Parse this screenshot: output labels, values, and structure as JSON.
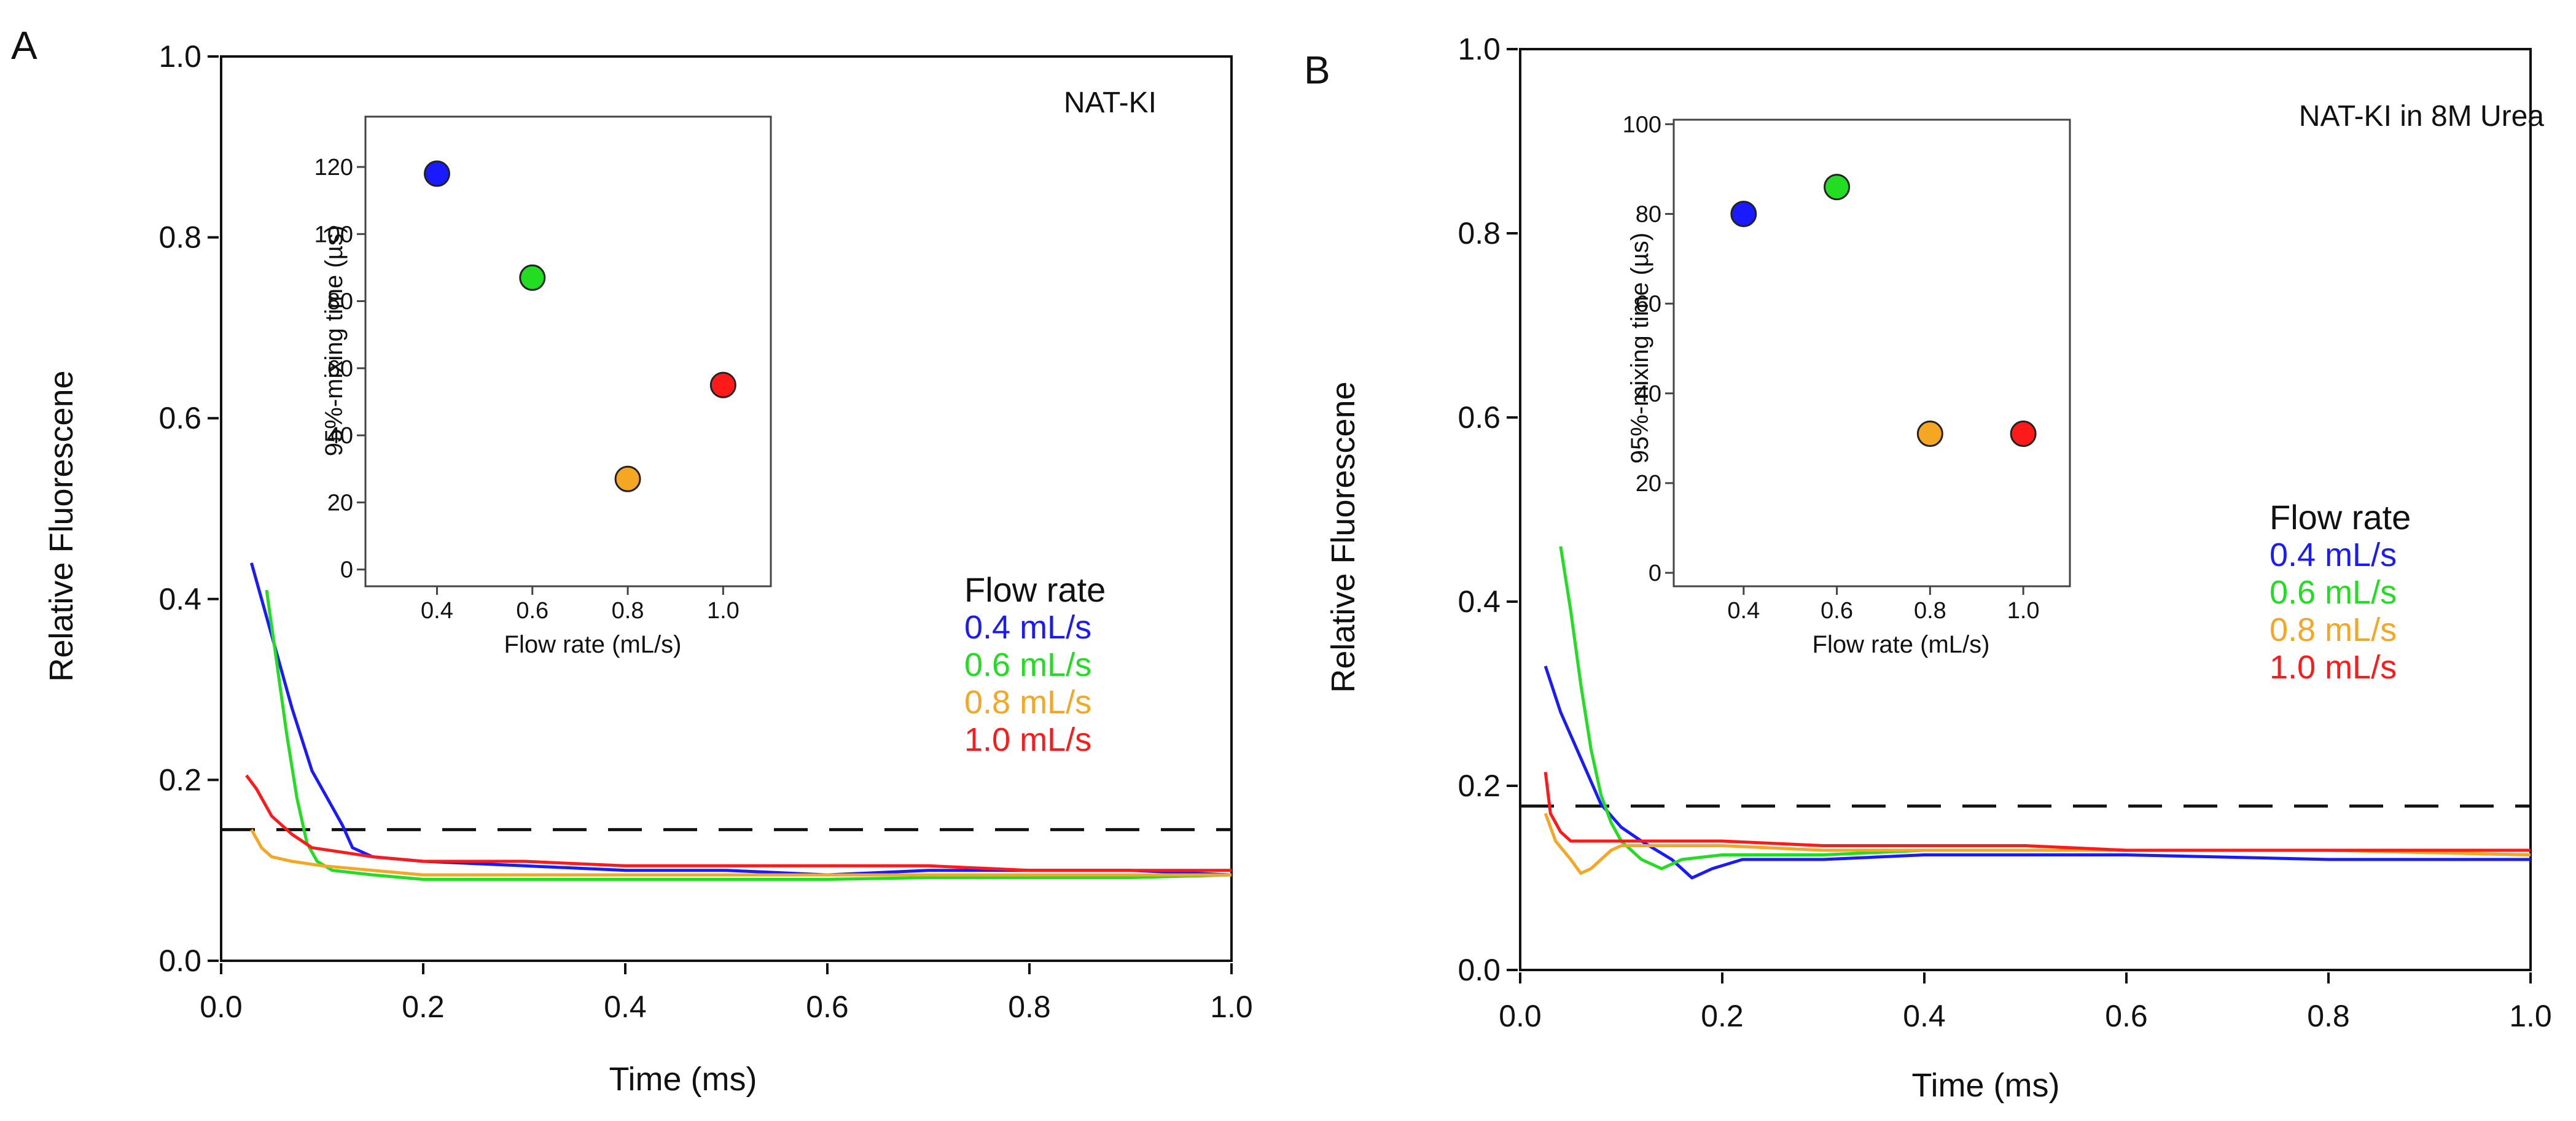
{
  "chart_data": [
    {
      "type": "line",
      "panel_letter": "A",
      "title": "NAT-KI",
      "xlabel": "Time (ms)",
      "ylabel": "Relative Fluorescene",
      "xlim": [
        0.0,
        1.0
      ],
      "ylim": [
        0.0,
        1.0
      ],
      "x_ticks": [
        "0.0",
        "0.2",
        "0.4",
        "0.6",
        "0.8",
        "1.0"
      ],
      "y_ticks": [
        "0.0",
        "0.2",
        "0.4",
        "0.6",
        "0.8",
        "1.0"
      ],
      "threshold_line": 0.145,
      "legend_title": "Flow rate",
      "series": [
        {
          "name": "0.4 mL/s",
          "color": "#1a1aff",
          "x": [
            0.03,
            0.05,
            0.07,
            0.09,
            0.11,
            0.12,
            0.13,
            0.15,
            0.2,
            0.3,
            0.4,
            0.5,
            0.6,
            0.7,
            0.8,
            0.9,
            1.0
          ],
          "y": [
            0.44,
            0.36,
            0.28,
            0.21,
            0.17,
            0.15,
            0.125,
            0.115,
            0.11,
            0.105,
            0.1,
            0.1,
            0.095,
            0.1,
            0.1,
            0.1,
            0.095
          ]
        },
        {
          "name": "0.6 mL/s",
          "color": "#22dd22",
          "x": [
            0.045,
            0.055,
            0.065,
            0.075,
            0.085,
            0.095,
            0.11,
            0.15,
            0.2,
            0.3,
            0.4,
            0.5,
            0.6,
            0.7,
            0.8,
            0.9,
            1.0
          ],
          "y": [
            0.41,
            0.33,
            0.25,
            0.18,
            0.13,
            0.11,
            0.1,
            0.095,
            0.09,
            0.09,
            0.09,
            0.09,
            0.09,
            0.092,
            0.092,
            0.092,
            0.095
          ]
        },
        {
          "name": "0.8 mL/s",
          "color": "#f5a623",
          "x": [
            0.03,
            0.04,
            0.05,
            0.07,
            0.1,
            0.15,
            0.2,
            0.3,
            0.4,
            0.5,
            0.6,
            0.7,
            0.8,
            0.9,
            1.0
          ],
          "y": [
            0.145,
            0.125,
            0.115,
            0.11,
            0.105,
            0.1,
            0.095,
            0.095,
            0.095,
            0.095,
            0.095,
            0.095,
            0.095,
            0.095,
            0.095
          ]
        },
        {
          "name": "1.0 mL/s",
          "color": "#ff1a1a",
          "x": [
            0.025,
            0.035,
            0.05,
            0.07,
            0.09,
            0.12,
            0.15,
            0.2,
            0.3,
            0.4,
            0.5,
            0.6,
            0.7,
            0.8,
            0.9,
            1.0
          ],
          "y": [
            0.205,
            0.19,
            0.16,
            0.14,
            0.125,
            0.12,
            0.115,
            0.11,
            0.11,
            0.105,
            0.105,
            0.105,
            0.105,
            0.1,
            0.1,
            0.1
          ]
        }
      ],
      "inset": {
        "type": "scatter",
        "xlabel": "Flow rate (mL/s)",
        "ylabel": "95%-mixing time  (µs)",
        "xlim": [
          0.25,
          1.1
        ],
        "ylim": [
          -5,
          135
        ],
        "x_ticks": [
          "0.4",
          "0.6",
          "0.8",
          "1.0"
        ],
        "y_ticks": [
          "0",
          "20",
          "40",
          "60",
          "80",
          "100",
          "120"
        ],
        "points": [
          {
            "x": 0.4,
            "y": 118,
            "color": "#1a1aff"
          },
          {
            "x": 0.6,
            "y": 87,
            "color": "#22dd22"
          },
          {
            "x": 0.8,
            "y": 27,
            "color": "#f5a623"
          },
          {
            "x": 1.0,
            "y": 55,
            "color": "#ff1a1a"
          }
        ]
      }
    },
    {
      "type": "line",
      "panel_letter": "B",
      "title": "NAT-KI in 8M Urea",
      "xlabel": "Time (ms)",
      "ylabel": "Relative Fluorescene",
      "xlim": [
        0.0,
        1.0
      ],
      "ylim": [
        0.0,
        1.0
      ],
      "x_ticks": [
        "0.0",
        "0.2",
        "0.4",
        "0.6",
        "0.8",
        "1.0"
      ],
      "y_ticks": [
        "0.0",
        "0.2",
        "0.4",
        "0.6",
        "0.8",
        "1.0"
      ],
      "threshold_line": 0.178,
      "legend_title": "Flow rate",
      "series": [
        {
          "name": "0.4 mL/s",
          "color": "#1a1aff",
          "x": [
            0.025,
            0.04,
            0.06,
            0.08,
            0.1,
            0.12,
            0.15,
            0.17,
            0.19,
            0.22,
            0.3,
            0.4,
            0.6,
            0.8,
            1.0
          ],
          "y": [
            0.33,
            0.28,
            0.23,
            0.18,
            0.155,
            0.14,
            0.12,
            0.1,
            0.11,
            0.12,
            0.12,
            0.125,
            0.125,
            0.12,
            0.12
          ]
        },
        {
          "name": "0.6 mL/s",
          "color": "#22dd22",
          "x": [
            0.04,
            0.05,
            0.06,
            0.07,
            0.08,
            0.09,
            0.1,
            0.12,
            0.14,
            0.16,
            0.2,
            0.3,
            0.4,
            0.6,
            0.8,
            1.0
          ],
          "y": [
            0.46,
            0.39,
            0.31,
            0.24,
            0.19,
            0.16,
            0.14,
            0.12,
            0.11,
            0.12,
            0.125,
            0.125,
            0.13,
            0.13,
            0.13,
            0.125
          ]
        },
        {
          "name": "0.8 mL/s",
          "color": "#f5a623",
          "x": [
            0.025,
            0.035,
            0.05,
            0.06,
            0.07,
            0.08,
            0.09,
            0.1,
            0.12,
            0.15,
            0.2,
            0.3,
            0.4,
            0.6,
            0.8,
            1.0
          ],
          "y": [
            0.17,
            0.14,
            0.12,
            0.105,
            0.11,
            0.12,
            0.13,
            0.135,
            0.135,
            0.135,
            0.135,
            0.13,
            0.13,
            0.13,
            0.13,
            0.125
          ]
        },
        {
          "name": "1.0 mL/s",
          "color": "#ff1a1a",
          "x": [
            0.025,
            0.03,
            0.04,
            0.05,
            0.07,
            0.1,
            0.15,
            0.2,
            0.3,
            0.4,
            0.5,
            0.6,
            0.8,
            1.0
          ],
          "y": [
            0.215,
            0.17,
            0.15,
            0.14,
            0.14,
            0.14,
            0.14,
            0.14,
            0.135,
            0.135,
            0.135,
            0.13,
            0.13,
            0.13
          ]
        }
      ],
      "inset": {
        "type": "scatter",
        "xlabel": "Flow rate (mL/s)",
        "ylabel": "95%-mixing time  (µs)",
        "xlim": [
          0.25,
          1.1
        ],
        "ylim": [
          -3,
          101
        ],
        "x_ticks": [
          "0.4",
          "0.6",
          "0.8",
          "1.0"
        ],
        "y_ticks": [
          "0",
          "20",
          "40",
          "60",
          "80",
          "100"
        ],
        "points": [
          {
            "x": 0.4,
            "y": 80,
            "color": "#1a1aff"
          },
          {
            "x": 0.6,
            "y": 86,
            "color": "#22dd22"
          },
          {
            "x": 0.8,
            "y": 31,
            "color": "#f5a623"
          },
          {
            "x": 1.0,
            "y": 31,
            "color": "#ff1a1a"
          }
        ]
      }
    }
  ]
}
